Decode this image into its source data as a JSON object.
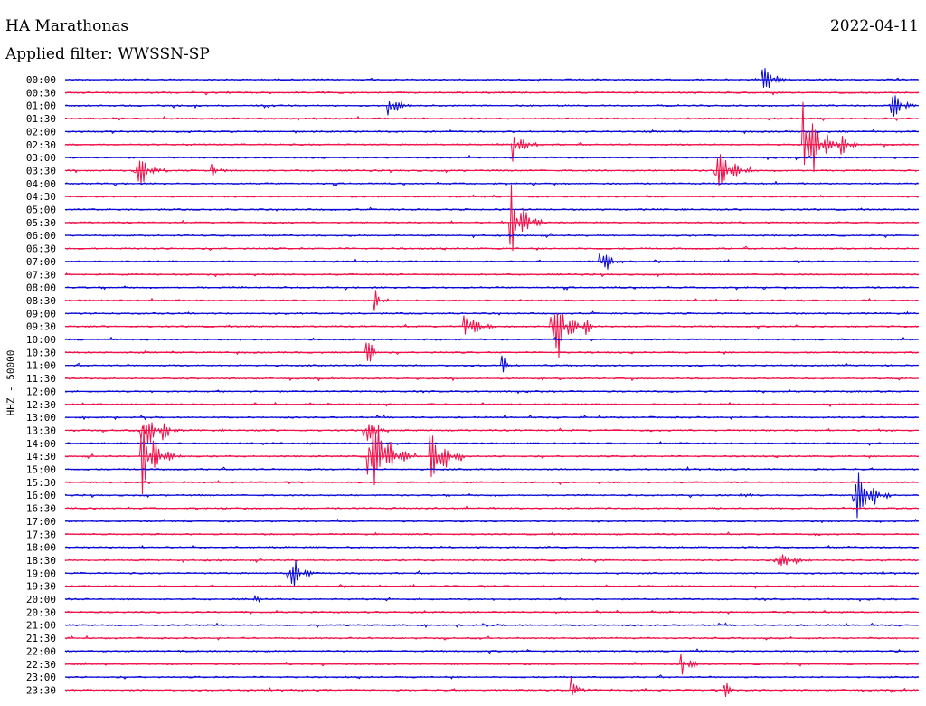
{
  "header": {
    "station": "HA Marathonas",
    "date": "2022-04-11",
    "filter_label": "Applied filter: WWSSN-SP"
  },
  "channel_label": "HHZ - 50000",
  "colors": {
    "blue": "#0a0ad8",
    "red": "#f0104a"
  },
  "rows": [
    {
      "time": "00:00",
      "color": "blue"
    },
    {
      "time": "00:30",
      "color": "red"
    },
    {
      "time": "01:00",
      "color": "blue"
    },
    {
      "time": "01:30",
      "color": "red"
    },
    {
      "time": "02:00",
      "color": "blue"
    },
    {
      "time": "02:30",
      "color": "red"
    },
    {
      "time": "03:00",
      "color": "blue"
    },
    {
      "time": "03:30",
      "color": "red"
    },
    {
      "time": "04:00",
      "color": "blue"
    },
    {
      "time": "04:30",
      "color": "red"
    },
    {
      "time": "05:00",
      "color": "blue"
    },
    {
      "time": "05:30",
      "color": "red"
    },
    {
      "time": "06:00",
      "color": "blue"
    },
    {
      "time": "06:30",
      "color": "red"
    },
    {
      "time": "07:00",
      "color": "blue"
    },
    {
      "time": "07:30",
      "color": "red"
    },
    {
      "time": "08:00",
      "color": "blue"
    },
    {
      "time": "08:30",
      "color": "red"
    },
    {
      "time": "09:00",
      "color": "blue"
    },
    {
      "time": "09:30",
      "color": "red"
    },
    {
      "time": "10:00",
      "color": "blue"
    },
    {
      "time": "10:30",
      "color": "red"
    },
    {
      "time": "11:00",
      "color": "blue"
    },
    {
      "time": "11:30",
      "color": "red"
    },
    {
      "time": "12:00",
      "color": "blue"
    },
    {
      "time": "12:30",
      "color": "red"
    },
    {
      "time": "13:00",
      "color": "blue"
    },
    {
      "time": "13:30",
      "color": "red"
    },
    {
      "time": "14:00",
      "color": "blue"
    },
    {
      "time": "14:30",
      "color": "red"
    },
    {
      "time": "15:00",
      "color": "blue"
    },
    {
      "time": "15:30",
      "color": "red"
    },
    {
      "time": "16:00",
      "color": "blue"
    },
    {
      "time": "16:30",
      "color": "red"
    },
    {
      "time": "17:00",
      "color": "blue"
    },
    {
      "time": "17:30",
      "color": "red"
    },
    {
      "time": "18:00",
      "color": "blue"
    },
    {
      "time": "18:30",
      "color": "red"
    },
    {
      "time": "19:00",
      "color": "blue"
    },
    {
      "time": "19:30",
      "color": "red"
    },
    {
      "time": "20:00",
      "color": "blue"
    },
    {
      "time": "20:30",
      "color": "red"
    },
    {
      "time": "21:00",
      "color": "blue"
    },
    {
      "time": "21:30",
      "color": "red"
    },
    {
      "time": "22:00",
      "color": "blue"
    },
    {
      "time": "22:30",
      "color": "red"
    },
    {
      "time": "23:00",
      "color": "blue"
    },
    {
      "time": "23:30",
      "color": "red"
    }
  ]
}
